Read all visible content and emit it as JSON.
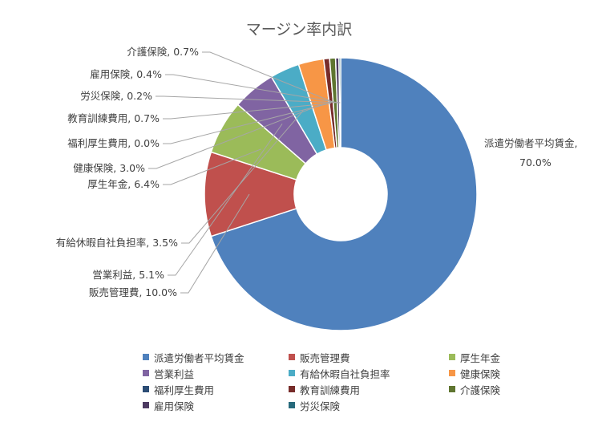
{
  "chart_data": {
    "type": "pie",
    "variant": "doughnut",
    "title": "マージン率内訳",
    "slices": [
      {
        "name": "派遣労働者平均賃金",
        "value": 70.0,
        "label": "派遣労働者平均賃金, 70.0%",
        "color": "#4f81bd"
      },
      {
        "name": "販売管理費",
        "value": 10.0,
        "label": "販売管理費, 10.0%",
        "color": "#c0504d"
      },
      {
        "name": "厚生年金",
        "value": 6.4,
        "label": "厚生年金, 6.4%",
        "color": "#9bbb59"
      },
      {
        "name": "営業利益",
        "value": 5.1,
        "label": "営業利益, 5.1%",
        "color": "#8064a2"
      },
      {
        "name": "有給休暇自社負担率",
        "value": 3.5,
        "label": "有給休暇自社負担率, 3.5%",
        "color": "#4bacc6"
      },
      {
        "name": "健康保険",
        "value": 3.0,
        "label": "健康保険, 3.0%",
        "color": "#f79646"
      },
      {
        "name": "福利厚生費用",
        "value": 0.0,
        "label": "福利厚生費用, 0.0%",
        "color": "#2c4d75"
      },
      {
        "name": "教育訓練費用",
        "value": 0.7,
        "label": "教育訓練費用, 0.7%",
        "color": "#772c2a"
      },
      {
        "name": "介護保険",
        "value": 0.7,
        "label": "介護保険, 0.7%",
        "color": "#5f7530"
      },
      {
        "name": "雇用保険",
        "value": 0.4,
        "label": "雇用保険, 0.4%",
        "color": "#4d3b62"
      },
      {
        "name": "労災保険",
        "value": 0.2,
        "label": "労災保険, 0.2%",
        "color": "#276a7c"
      }
    ],
    "legend_position": "bottom"
  }
}
